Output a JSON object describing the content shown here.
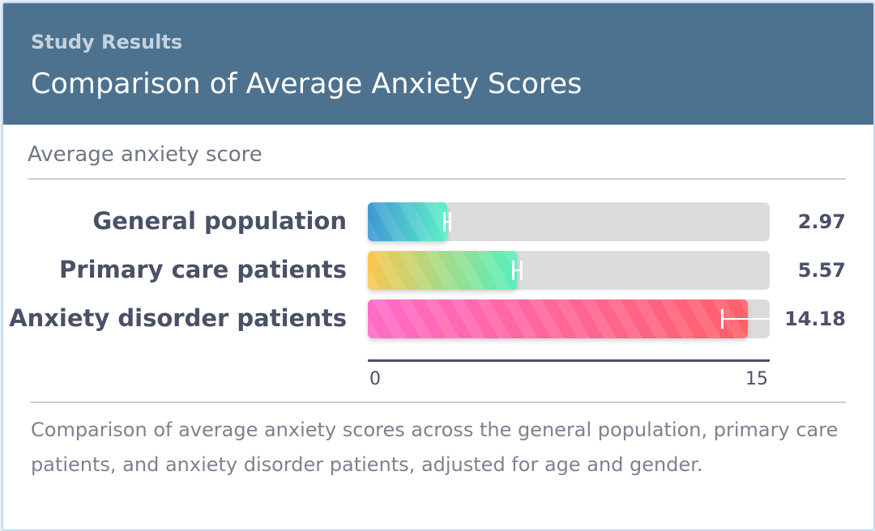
{
  "header": {
    "eyebrow": "Study Results",
    "title": "Comparison of Average Anxiety Scores"
  },
  "metric_label": "Average anxiety score",
  "caption": "Comparison of average anxiety scores across the general population, primary care patients, and anxiety disorder patients, adjusted for age and gender.",
  "chart_data": {
    "type": "bar",
    "orientation": "horizontal",
    "title": "Comparison of Average Anxiety Scores",
    "xlabel": "Average anxiety score",
    "xlim": [
      0,
      15
    ],
    "ticks": [
      "0",
      "15"
    ],
    "categories": [
      "General population",
      "Primary care patients",
      "Anxiety disorder patients"
    ],
    "values": [
      2.97,
      5.57,
      14.18
    ],
    "value_labels": [
      "2.97",
      "5.57",
      "14.18"
    ],
    "error": [
      0.15,
      0.2,
      1.0
    ],
    "colors": [
      [
        "#3d97d6",
        "#5ff0c7"
      ],
      [
        "#fbc64f",
        "#53f0bd"
      ],
      [
        "#ff6bc8",
        "#ff6069"
      ]
    ]
  }
}
